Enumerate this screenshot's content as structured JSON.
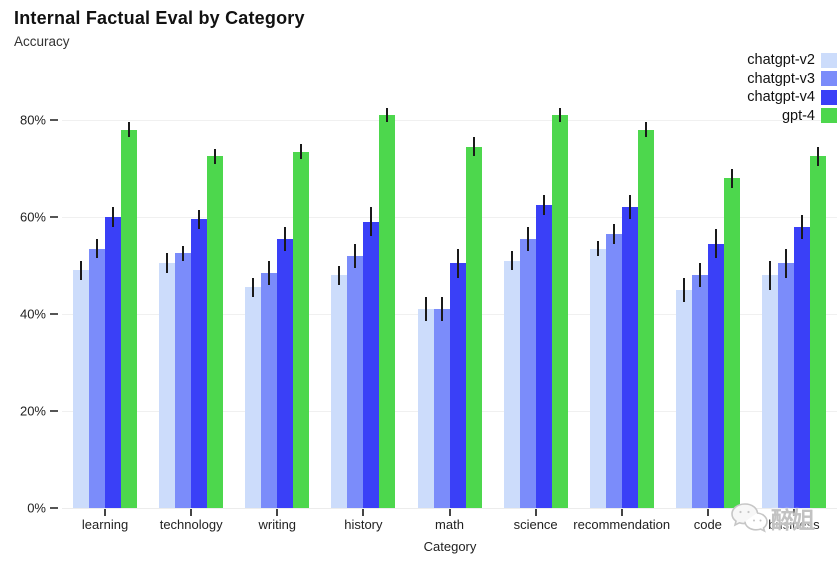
{
  "watermark": {
    "text": "醉姐",
    "icon": "wechat-chat-bubbles-icon"
  },
  "chart_data": {
    "type": "bar",
    "title": "Internal Factual Eval by Category",
    "subtitle": "Accuracy",
    "xlabel": "Category",
    "ylabel": "Accuracy",
    "ylim": [
      0,
      87
    ],
    "y_ticks": [
      "0%",
      "20%",
      "40%",
      "60%",
      "80%"
    ],
    "y_tick_values": [
      0,
      20,
      40,
      60,
      80
    ],
    "grid": true,
    "legend_position": "top-right",
    "background_color": "#ffffff",
    "gridline_color": "#f0f0f0",
    "error_bar_color": "#1a1a1a",
    "categories": [
      "learning",
      "technology",
      "writing",
      "history",
      "math",
      "science",
      "recommendation",
      "code",
      "business"
    ],
    "series": [
      {
        "name": "chatgpt-v2",
        "color": "#ccdcfb",
        "values": [
          49,
          50.5,
          45.5,
          48,
          41,
          51,
          53.5,
          45,
          48
        ],
        "errors": [
          2,
          2,
          2,
          2,
          2.5,
          2,
          1.5,
          2.5,
          3
        ]
      },
      {
        "name": "chatgpt-v3",
        "color": "#7b8cfa",
        "values": [
          53.5,
          52.5,
          48.5,
          52,
          41,
          55.5,
          56.5,
          48,
          50.5
        ],
        "errors": [
          2,
          1.5,
          2.5,
          2.5,
          2.5,
          2.5,
          2,
          2.5,
          3
        ]
      },
      {
        "name": "chatgpt-v4",
        "color": "#3a40f7",
        "values": [
          60,
          59.5,
          55.5,
          59,
          50.5,
          62.5,
          62,
          54.5,
          58
        ],
        "errors": [
          2,
          2,
          2.5,
          3,
          3,
          2,
          2.5,
          3,
          2.5
        ]
      },
      {
        "name": "gpt-4",
        "color": "#4dd74d",
        "values": [
          78,
          72.5,
          73.5,
          81,
          74.5,
          81,
          78,
          68,
          72.5
        ],
        "errors": [
          1.5,
          1.5,
          1.5,
          1.5,
          2,
          1.5,
          1.5,
          2,
          2
        ]
      }
    ]
  }
}
